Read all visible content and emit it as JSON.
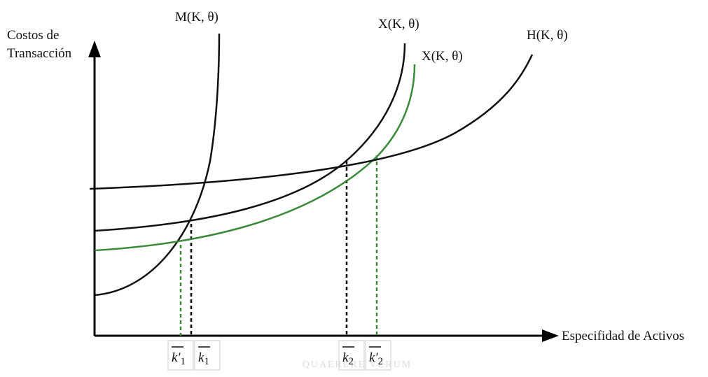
{
  "y_axis_label": [
    "Costos de",
    "Transacción"
  ],
  "x_axis_label": "Especifidad de Activos",
  "curves": [
    {
      "label": "M(K, θ)"
    },
    {
      "label": "X(K, θ)"
    },
    {
      "label": "X(K, θ)"
    },
    {
      "label": "H(K, θ)"
    }
  ],
  "points": [
    {
      "base": "k'",
      "sub": "1"
    },
    {
      "base": "k",
      "sub": "1"
    },
    {
      "base": "k",
      "sub": "2"
    },
    {
      "base": "k'",
      "sub": "2"
    }
  ],
  "watermark": "QUAERERE VERUM"
}
